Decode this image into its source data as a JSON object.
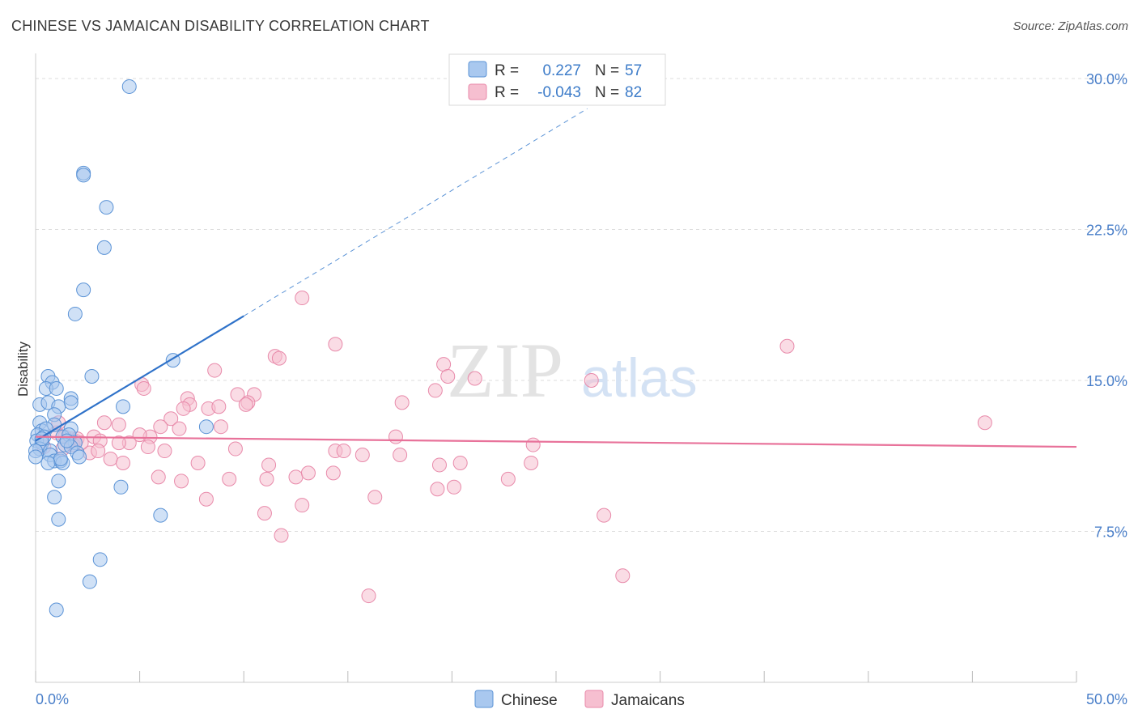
{
  "header": {
    "title": "CHINESE VS JAMAICAN DISABILITY CORRELATION CHART",
    "source": "Source: ZipAtlas.com"
  },
  "watermark": {
    "zip": "ZIP",
    "atlas": "atlas"
  },
  "legend_top": {
    "rows": [
      {
        "r_label": "R =",
        "r_value": "0.227",
        "n_label": "N =",
        "n_value": "57"
      },
      {
        "r_label": "R =",
        "r_value": "-0.043",
        "n_label": "N =",
        "n_value": "82"
      }
    ]
  },
  "colors": {
    "chinese_fill": "#a9c8ef",
    "chinese_stroke": "#5b93d6",
    "chinese_line": "#2f72c9",
    "jamaican_fill": "#f6bfd0",
    "jamaican_stroke": "#e88aaa",
    "jamaican_line": "#e8729a",
    "accent_text": "#3d7cc9",
    "grid": "#dddddd"
  },
  "chart_data": {
    "type": "scatter",
    "title": "CHINESE VS JAMAICAN DISABILITY CORRELATION CHART",
    "xlabel": "",
    "ylabel": "Disability",
    "xlim": [
      0,
      50
    ],
    "ylim": [
      0,
      31.5
    ],
    "x_tick_labels": [
      "0.0%",
      "50.0%"
    ],
    "y_ticks": [
      7.5,
      15.0,
      22.5,
      30.0
    ],
    "y_tick_labels": [
      "7.5%",
      "15.0%",
      "22.5%",
      "30.0%"
    ],
    "grid": true,
    "legend_position": "bottom-center",
    "series": [
      {
        "name": "Chinese",
        "r": 0.227,
        "n": 57,
        "trend": {
          "x0": 0.0,
          "y0": 12.0,
          "x1": 10.0,
          "y1": 18.2,
          "dashed_to": {
            "x": 26.5,
            "y": 28.5
          }
        },
        "points": [
          [
            4.5,
            29.6
          ],
          [
            2.3,
            25.3
          ],
          [
            2.3,
            25.2
          ],
          [
            3.4,
            23.6
          ],
          [
            3.3,
            21.6
          ],
          [
            2.3,
            19.5
          ],
          [
            1.9,
            18.3
          ],
          [
            6.6,
            16.0
          ],
          [
            2.7,
            15.2
          ],
          [
            0.6,
            15.2
          ],
          [
            0.8,
            14.9
          ],
          [
            0.5,
            14.6
          ],
          [
            1.0,
            14.6
          ],
          [
            1.7,
            14.1
          ],
          [
            1.7,
            13.9
          ],
          [
            0.2,
            13.8
          ],
          [
            0.6,
            13.9
          ],
          [
            1.1,
            13.7
          ],
          [
            4.2,
            13.7
          ],
          [
            0.2,
            12.9
          ],
          [
            0.9,
            13.3
          ],
          [
            0.9,
            12.8
          ],
          [
            8.2,
            12.7
          ],
          [
            0.3,
            12.5
          ],
          [
            0.5,
            12.6
          ],
          [
            1.7,
            12.6
          ],
          [
            0.1,
            12.3
          ],
          [
            0.4,
            12.2
          ],
          [
            1.3,
            12.2
          ],
          [
            1.6,
            12.3
          ],
          [
            0.05,
            12.0
          ],
          [
            0.3,
            11.9
          ],
          [
            1.9,
            11.9
          ],
          [
            1.4,
            11.8
          ],
          [
            0.2,
            11.6
          ],
          [
            1.7,
            11.7
          ],
          [
            0.0,
            11.5
          ],
          [
            0.7,
            11.5
          ],
          [
            0.7,
            11.3
          ],
          [
            2.0,
            11.4
          ],
          [
            0.0,
            11.2
          ],
          [
            2.1,
            11.2
          ],
          [
            0.9,
            11.0
          ],
          [
            1.2,
            11.0
          ],
          [
            1.3,
            10.9
          ],
          [
            1.2,
            11.1
          ],
          [
            0.6,
            10.9
          ],
          [
            1.1,
            10.0
          ],
          [
            4.1,
            9.7
          ],
          [
            0.9,
            9.2
          ],
          [
            6.0,
            8.3
          ],
          [
            1.1,
            8.1
          ],
          [
            3.1,
            6.1
          ],
          [
            2.6,
            5.0
          ],
          [
            1.0,
            3.6
          ],
          [
            0.3,
            12.1
          ],
          [
            1.5,
            12.0
          ]
        ]
      },
      {
        "name": "Jamaicans",
        "r": -0.043,
        "n": 82,
        "trend": {
          "x0": 0.0,
          "y0": 12.2,
          "x1": 50.0,
          "y1": 11.7
        },
        "points": [
          [
            12.8,
            19.1
          ],
          [
            14.4,
            16.8
          ],
          [
            36.1,
            16.7
          ],
          [
            11.5,
            16.2
          ],
          [
            11.7,
            16.1
          ],
          [
            19.6,
            15.8
          ],
          [
            8.6,
            15.5
          ],
          [
            21.1,
            15.1
          ],
          [
            19.8,
            15.2
          ],
          [
            26.7,
            15.0
          ],
          [
            5.1,
            14.8
          ],
          [
            5.2,
            14.6
          ],
          [
            9.7,
            14.3
          ],
          [
            10.5,
            14.3
          ],
          [
            19.2,
            14.5
          ],
          [
            7.3,
            14.1
          ],
          [
            10.2,
            13.9
          ],
          [
            17.6,
            13.9
          ],
          [
            10.1,
            13.8
          ],
          [
            7.4,
            13.8
          ],
          [
            8.3,
            13.6
          ],
          [
            7.1,
            13.6
          ],
          [
            8.8,
            13.7
          ],
          [
            6.5,
            13.1
          ],
          [
            5.5,
            12.2
          ],
          [
            5.0,
            12.3
          ],
          [
            3.3,
            12.9
          ],
          [
            4.0,
            12.8
          ],
          [
            6.0,
            12.7
          ],
          [
            8.9,
            12.7
          ],
          [
            45.6,
            12.9
          ],
          [
            17.3,
            12.2
          ],
          [
            6.9,
            12.6
          ],
          [
            1.7,
            12.1
          ],
          [
            1.9,
            12.0
          ],
          [
            2.0,
            12.1
          ],
          [
            1.4,
            12.2
          ],
          [
            2.8,
            12.2
          ],
          [
            3.1,
            12.0
          ],
          [
            1.8,
            11.8
          ],
          [
            4.5,
            11.9
          ],
          [
            4.0,
            11.9
          ],
          [
            23.9,
            11.8
          ],
          [
            1.3,
            11.6
          ],
          [
            1.0,
            12.4
          ],
          [
            0.4,
            11.7
          ],
          [
            5.4,
            11.7
          ],
          [
            6.2,
            11.5
          ],
          [
            9.6,
            11.6
          ],
          [
            14.4,
            11.5
          ],
          [
            14.8,
            11.5
          ],
          [
            15.7,
            11.3
          ],
          [
            17.5,
            11.3
          ],
          [
            2.6,
            11.4
          ],
          [
            3.6,
            11.1
          ],
          [
            4.2,
            10.9
          ],
          [
            7.8,
            10.9
          ],
          [
            11.2,
            10.8
          ],
          [
            19.4,
            10.8
          ],
          [
            20.4,
            10.9
          ],
          [
            23.8,
            10.9
          ],
          [
            12.5,
            10.2
          ],
          [
            14.3,
            10.4
          ],
          [
            13.1,
            10.4
          ],
          [
            7.0,
            10.0
          ],
          [
            5.9,
            10.2
          ],
          [
            9.3,
            10.1
          ],
          [
            11.1,
            10.1
          ],
          [
            22.7,
            10.1
          ],
          [
            19.3,
            9.6
          ],
          [
            20.1,
            9.7
          ],
          [
            16.3,
            9.2
          ],
          [
            8.2,
            9.1
          ],
          [
            12.8,
            8.8
          ],
          [
            11.0,
            8.4
          ],
          [
            27.3,
            8.3
          ],
          [
            11.8,
            7.3
          ],
          [
            28.2,
            5.3
          ],
          [
            16.0,
            4.3
          ],
          [
            2.2,
            11.9
          ],
          [
            3.0,
            11.5
          ],
          [
            1.1,
            12.9
          ]
        ]
      }
    ]
  }
}
